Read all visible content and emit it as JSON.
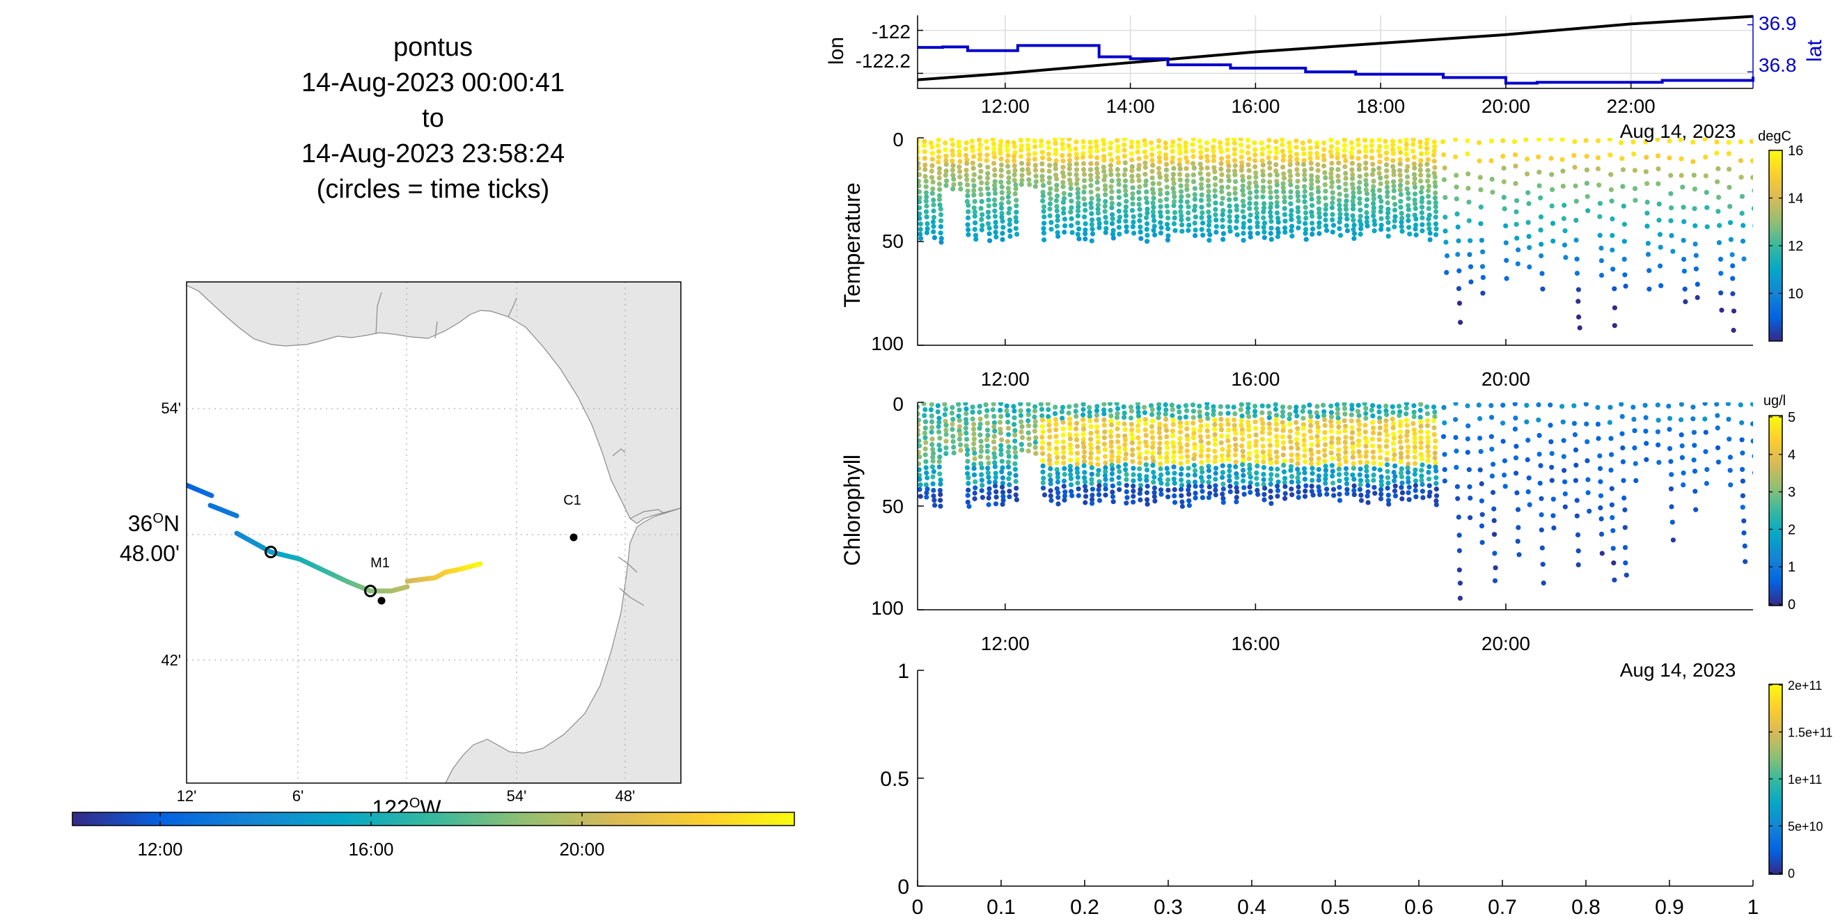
{
  "header": {
    "lines": [
      "pontus",
      "14-Aug-2023 00:00:41",
      "to",
      "14-Aug-2023 23:58:24",
      "(circles = time ticks)"
    ]
  },
  "colors": {
    "land": "#e6e6e6",
    "coast": "#777777",
    "lon_line": "#000000",
    "lat_line": "#0000cc",
    "grid": "#d9d9d9",
    "parula": [
      "#352a87",
      "#0363e1",
      "#1485d4",
      "#06a7c6",
      "#38b99e",
      "#92bf73",
      "#d9ba56",
      "#fcce2e",
      "#f9fb0e"
    ]
  },
  "map": {
    "lat_tick_labels": [
      "54'",
      "36°N 48.00'",
      "42'"
    ],
    "lon_tick_labels": [
      "12'",
      "6'",
      "122°W",
      "54'",
      "48'"
    ],
    "stations": [
      {
        "name": "M1",
        "lon": -122.02,
        "lat": 36.75
      },
      {
        "name": "C1",
        "lon": -121.85,
        "lat": 36.795
      }
    ],
    "colorbar": {
      "ticks": [
        "12:00",
        "16:00",
        "20:00"
      ]
    }
  },
  "chart_data": [
    {
      "type": "line",
      "title": "",
      "xlabel": "",
      "ylabel": "lon",
      "ylabel_right": "lat",
      "x_tick_labels": [
        "12:00",
        "14:00",
        "16:00",
        "18:00",
        "20:00",
        "22:00"
      ],
      "y_tick_labels": [
        "-122",
        "-122.2"
      ],
      "y_right_tick_labels": [
        "36.9",
        "36.8"
      ],
      "xlim_hours": [
        10.6,
        23.95
      ],
      "ylim": [
        -122.27,
        -121.93
      ],
      "ylim_right": [
        36.765,
        36.92
      ],
      "grid": true,
      "series": [
        {
          "axis": "left",
          "x": [
            10.6,
            12,
            14,
            16,
            18,
            20,
            22,
            23.95
          ],
          "y": [
            -122.23,
            -122.2,
            -122.15,
            -122.1,
            -122.06,
            -122.02,
            -121.97,
            -121.935
          ]
        },
        {
          "axis": "right",
          "x": [
            10.6,
            11,
            11.4,
            12.2,
            13.5,
            14,
            14.6,
            15.6,
            16.8,
            17.6,
            19,
            20,
            20.5,
            21.5,
            22.5,
            23.95
          ],
          "y": [
            36.852,
            36.853,
            36.845,
            36.856,
            36.832,
            36.828,
            36.815,
            36.808,
            36.8,
            36.795,
            36.788,
            36.776,
            36.778,
            36.778,
            36.782,
            36.79
          ]
        }
      ]
    },
    {
      "type": "scatter",
      "title": "",
      "xlabel": "",
      "ylabel": "Temperature",
      "x_tick_labels": [
        "12:00",
        "16:00",
        "20:00"
      ],
      "date_label": "Aug 14, 2023",
      "y_tick_labels": [
        "0",
        "50",
        "100"
      ],
      "ylim": [
        0,
        100
      ],
      "y_reversed": true,
      "colorbar_unit": "degC",
      "colorbar_ticks": [
        "16",
        "14",
        "12",
        "10"
      ],
      "colorbar_range": [
        8,
        16
      ]
    },
    {
      "type": "scatter",
      "title": "",
      "xlabel": "",
      "ylabel": "Chlorophyll",
      "x_tick_labels": [
        "12:00",
        "16:00",
        "20:00"
      ],
      "date_label": "Aug 14, 2023",
      "y_tick_labels": [
        "0",
        "50",
        "100"
      ],
      "ylim": [
        0,
        100
      ],
      "y_reversed": true,
      "colorbar_unit": "ug/l",
      "colorbar_ticks": [
        "5",
        "4",
        "3",
        "2",
        "1",
        "0"
      ],
      "colorbar_range": [
        0,
        5
      ]
    },
    {
      "type": "scatter",
      "title": "",
      "xlabel": "",
      "ylabel": "",
      "x_tick_labels": [
        "0",
        "0.1",
        "0.2",
        "0.3",
        "0.4",
        "0.5",
        "0.6",
        "0.7",
        "0.8",
        "0.9",
        "1"
      ],
      "y_tick_labels": [
        "1",
        "0.5",
        "0"
      ],
      "xlim": [
        0,
        1
      ],
      "ylim": [
        0,
        1
      ],
      "colorbar_ticks": [
        "2e+11",
        "1.5e+11",
        "1e+11",
        "5e+10",
        "0"
      ]
    }
  ]
}
